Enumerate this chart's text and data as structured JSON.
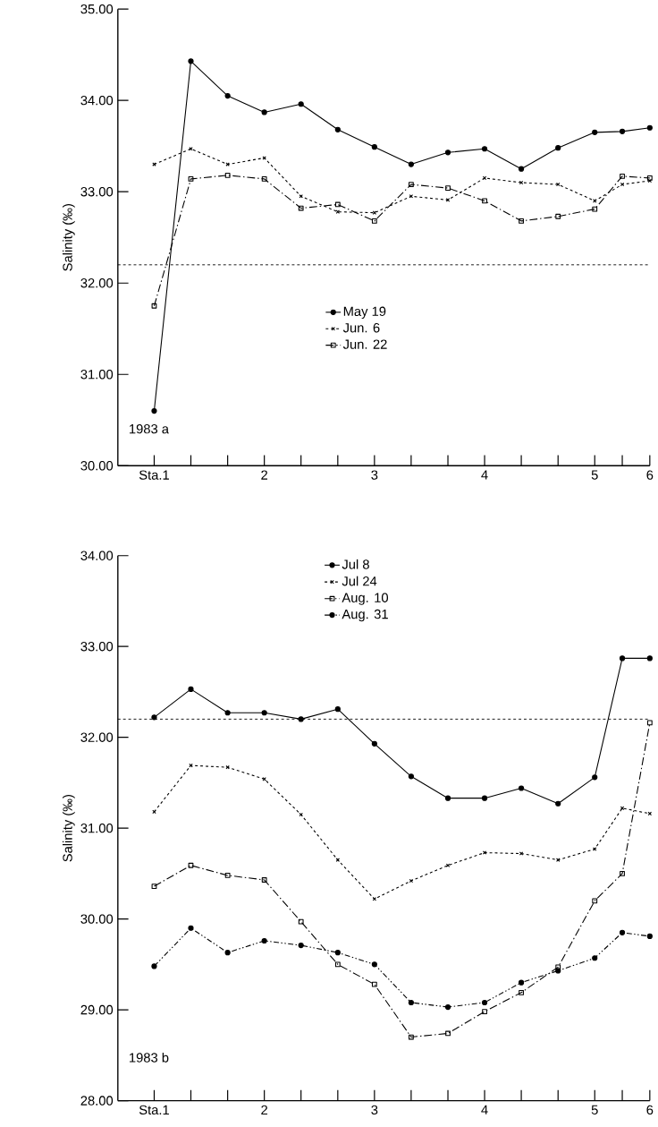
{
  "chart_data": [
    {
      "type": "line",
      "ylabel": "Salinity (‰)",
      "annotations": [
        "1983 a"
      ],
      "legend": "center",
      "x": [
        1,
        1.333,
        1.667,
        2,
        2.333,
        2.667,
        3,
        3.333,
        3.667,
        4,
        4.333,
        4.667,
        5,
        5.25,
        5.5
      ],
      "xlim": [
        0.67,
        5.5
      ],
      "xticks": [
        {
          "value": 1,
          "label": "Sta.1"
        },
        {
          "value": 1.333,
          "label": null
        },
        {
          "value": 1.667,
          "label": null
        },
        2,
        {
          "value": 2.333,
          "label": null
        },
        {
          "value": 2.667,
          "label": null
        },
        3,
        {
          "value": 3.333,
          "label": null
        },
        {
          "value": 3.667,
          "label": null
        },
        4,
        {
          "value": 4.333,
          "label": null
        },
        {
          "value": 4.667,
          "label": null
        },
        5,
        {
          "value": 5.25,
          "label": null
        },
        {
          "value": 5.5,
          "label": "6"
        }
      ],
      "ylim": [
        30,
        35
      ],
      "yticks": [
        {
          "value": 30,
          "label": "30.00"
        },
        {
          "value": 31,
          "label": "31.00"
        },
        {
          "value": 32,
          "label": "32.00"
        },
        {
          "value": 33,
          "label": "33.00"
        },
        {
          "value": 34,
          "label": "34.00"
        },
        {
          "value": 35,
          "label": "35.00"
        }
      ],
      "ref_lines": [
        {
          "axis": "y",
          "value": 32.2,
          "color": "#000000",
          "line_style": "dashed"
        }
      ],
      "series": [
        {
          "name": "May  19",
          "color": "#000000",
          "line_style": "solid",
          "marker": "circle",
          "values": [
            30.6,
            34.43,
            34.05,
            33.87,
            33.96,
            33.68,
            33.49,
            33.3,
            33.43,
            33.47,
            33.25,
            33.48,
            33.65,
            33.66,
            33.7
          ]
        },
        {
          "name": "Jun.  6",
          "color": "#000000",
          "line_style": "dashed",
          "marker": "cross",
          "values": [
            33.3,
            33.47,
            33.3,
            33.37,
            32.95,
            32.78,
            32.77,
            32.95,
            32.91,
            33.15,
            33.1,
            33.08,
            32.9,
            33.08,
            33.12
          ]
        },
        {
          "name": "Jun.  22",
          "color": "#000000",
          "line_style": "dashdot",
          "marker": "square",
          "values": [
            31.75,
            33.14,
            33.18,
            33.14,
            32.82,
            32.86,
            32.68,
            33.08,
            33.04,
            32.9,
            32.68,
            32.73,
            32.81,
            33.17,
            33.15
          ]
        }
      ]
    },
    {
      "type": "line",
      "ylabel": "Salinity (‰)",
      "annotations": [
        "1983 b"
      ],
      "legend": "top",
      "x": [
        1,
        1.333,
        1.667,
        2,
        2.333,
        2.667,
        3,
        3.333,
        3.667,
        4,
        4.333,
        4.667,
        5,
        5.25,
        5.5
      ],
      "xlim": [
        0.67,
        5.5
      ],
      "xticks": [
        {
          "value": 1,
          "label": "Sta.1"
        },
        {
          "value": 1.333,
          "label": null
        },
        {
          "value": 1.667,
          "label": null
        },
        2,
        {
          "value": 2.333,
          "label": null
        },
        {
          "value": 2.667,
          "label": null
        },
        3,
        {
          "value": 3.333,
          "label": null
        },
        {
          "value": 3.667,
          "label": null
        },
        4,
        {
          "value": 4.333,
          "label": null
        },
        {
          "value": 4.667,
          "label": null
        },
        5,
        {
          "value": 5.25,
          "label": null
        },
        {
          "value": 5.5,
          "label": "6"
        }
      ],
      "ylim": [
        28,
        34
      ],
      "yticks": [
        {
          "value": 28,
          "label": "28.00"
        },
        {
          "value": 29,
          "label": "29.00"
        },
        {
          "value": 30,
          "label": "30.00"
        },
        {
          "value": 31,
          "label": "31.00"
        },
        {
          "value": 32,
          "label": "32.00"
        },
        {
          "value": 33,
          "label": "33.00"
        },
        {
          "value": 34,
          "label": "34.00"
        }
      ],
      "ref_lines": [
        {
          "axis": "y",
          "value": 32.2,
          "color": "#000000",
          "line_style": "dashed"
        }
      ],
      "series": [
        {
          "name": "Jul  8",
          "color": "#000000",
          "line_style": "solid",
          "marker": "circle",
          "values": [
            32.22,
            32.53,
            32.27,
            32.27,
            32.2,
            32.31,
            31.93,
            31.57,
            31.33,
            31.33,
            31.44,
            31.27,
            31.56,
            32.87,
            32.87
          ]
        },
        {
          "name": "Jul  24",
          "color": "#000000",
          "line_style": "dashed",
          "marker": "cross",
          "values": [
            31.18,
            31.69,
            31.67,
            31.54,
            31.15,
            30.65,
            30.22,
            30.42,
            30.59,
            30.73,
            30.72,
            30.65,
            30.77,
            31.22,
            31.16
          ]
        },
        {
          "name": "Aug.  10",
          "color": "#000000",
          "line_style": "dashdot",
          "marker": "square",
          "values": [
            30.36,
            30.59,
            30.48,
            30.43,
            29.97,
            29.5,
            29.28,
            28.7,
            28.74,
            28.98,
            29.19,
            29.47,
            30.2,
            30.5,
            32.16
          ]
        },
        {
          "name": "Aug.  31",
          "color": "#000000",
          "line_style": "dashdotdot",
          "marker": "circle",
          "values": [
            29.48,
            29.9,
            29.63,
            29.76,
            29.71,
            29.63,
            29.5,
            29.08,
            29.03,
            29.08,
            29.3,
            29.43,
            29.57,
            29.85,
            29.81
          ]
        }
      ]
    }
  ]
}
